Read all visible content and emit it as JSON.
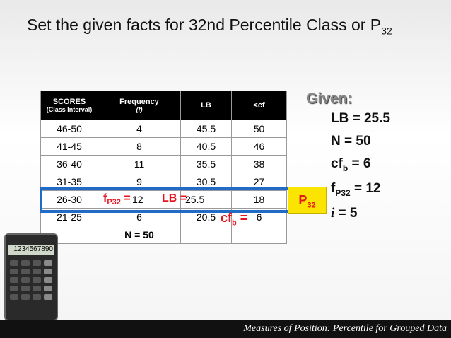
{
  "title": {
    "text": "Set the given facts for 32nd Percentile Class or P",
    "sub": "32"
  },
  "table": {
    "header": [
      [
        "SCORES",
        "(Class Interval)"
      ],
      [
        "Frequency",
        "(f)"
      ],
      [
        "LB"
      ],
      [
        "<cf"
      ]
    ],
    "rows": [
      [
        "46-50",
        "4",
        "45.5",
        "50"
      ],
      [
        "41-45",
        "8",
        "40.5",
        "46"
      ],
      [
        "36-40",
        "11",
        "35.5",
        "38"
      ],
      [
        "31-35",
        "9",
        "30.5",
        "27"
      ],
      [
        "26-30",
        "12",
        "25.5",
        "18"
      ],
      [
        "21-25",
        "6",
        "20.5",
        "6"
      ]
    ],
    "total": "N = 50"
  },
  "annotations": {
    "f": {
      "main": "f",
      "sub": "P32",
      "rest": " ="
    },
    "lb": {
      "main": "LB ="
    },
    "cf": {
      "main": "cf",
      "sub": "b",
      "rest": " ="
    },
    "class": {
      "main": "P",
      "sub": "32"
    }
  },
  "given": {
    "heading": "Given:",
    "items": [
      {
        "main": "LB = 25.5"
      },
      {
        "main": "N = 50"
      },
      {
        "main": "cf",
        "sub": "b",
        "rest": " = 6"
      },
      {
        "main": "f",
        "sub": "P32",
        "rest": " = 12"
      },
      {
        "main": "i",
        "rest": " = 5"
      }
    ]
  },
  "calculator": {
    "display": "1234567890"
  },
  "footer": "Measures of Position: Percentile for Grouped Data"
}
